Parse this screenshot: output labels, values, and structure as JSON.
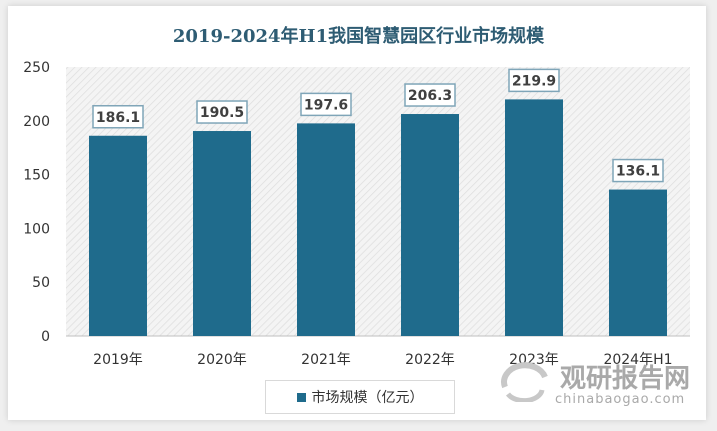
{
  "chart_data": {
    "type": "bar",
    "title": "2019-2024年H1我国智慧园区行业市场规模",
    "categories": [
      "2019年",
      "2020年",
      "2021年",
      "2022年",
      "2023年",
      "2024年H1"
    ],
    "series": [
      {
        "name": "市场规模（亿元）",
        "values": [
          186.1,
          190.5,
          197.6,
          206.3,
          219.9,
          136.1
        ]
      }
    ],
    "data_labels": [
      "186.1",
      "190.5",
      "197.6",
      "206.3",
      "219.9",
      "136.1"
    ],
    "ylim": [
      0,
      250
    ],
    "yticks": [
      0,
      50,
      100,
      150,
      200,
      250
    ],
    "grid": false,
    "legend": "bottom-left",
    "bar_color": "#1f6b8c"
  },
  "watermark": {
    "cn": "观研报告网",
    "en": "chinabaogao.com"
  }
}
